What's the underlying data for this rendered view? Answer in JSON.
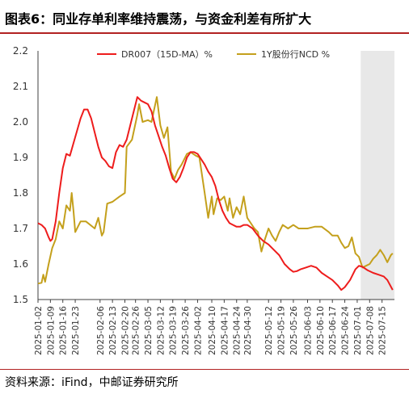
{
  "title": "图表6：同业存单利率维持震荡，与资金利差有所扩大",
  "source": "资料来源：iFind，中邮证券研究所",
  "colors": {
    "dr007": "#ee1c1c",
    "ncd": "#c4a01c",
    "shade": "#e8e8e8",
    "rule": "#b22222",
    "axis": "#404040"
  },
  "chart_data": {
    "type": "line",
    "ylim": [
      1.5,
      2.2
    ],
    "yticks": [
      "1.5",
      "1.6",
      "1.7",
      "1.8",
      "1.9",
      "2.0",
      "2.1",
      "2.2"
    ],
    "xlim": [
      "2025-01-02",
      "2025-07-22"
    ],
    "xticks": [
      "2025-01-02",
      "2025-01-09",
      "2025-01-16",
      "2025-01-23",
      "2025-02-06",
      "2025-02-13",
      "2025-02-20",
      "2025-02-26",
      "2025-03-05",
      "2025-03-12",
      "2025-03-19",
      "2025-03-26",
      "2025-04-02",
      "2025-04-10",
      "2025-04-17",
      "2025-04-24",
      "2025-04-30",
      "2025-05-12",
      "2025-05-19",
      "2025-05-26",
      "2025-06-03",
      "2025-06-10",
      "2025-06-17",
      "2025-06-24",
      "2025-07-01",
      "2025-07-08",
      "2025-07-15"
    ],
    "shaded_region": [
      "2025-07-03",
      "2025-07-22"
    ],
    "legend_position": "top",
    "series": [
      {
        "name": "DR007（15D-MA）%",
        "points": [
          [
            "2025-01-02",
            1.715
          ],
          [
            "2025-01-04",
            1.71
          ],
          [
            "2025-01-06",
            1.7
          ],
          [
            "2025-01-08",
            1.675
          ],
          [
            "2025-01-09",
            1.665
          ],
          [
            "2025-01-10",
            1.67
          ],
          [
            "2025-01-12",
            1.72
          ],
          [
            "2025-01-14",
            1.8
          ],
          [
            "2025-01-16",
            1.87
          ],
          [
            "2025-01-18",
            1.91
          ],
          [
            "2025-01-20",
            1.905
          ],
          [
            "2025-01-22",
            1.94
          ],
          [
            "2025-01-24",
            1.975
          ],
          [
            "2025-01-26",
            2.01
          ],
          [
            "2025-01-28",
            2.035
          ],
          [
            "2025-01-30",
            2.035
          ],
          [
            "2025-02-01",
            2.01
          ],
          [
            "2025-02-03",
            1.97
          ],
          [
            "2025-02-05",
            1.93
          ],
          [
            "2025-02-07",
            1.9
          ],
          [
            "2025-02-09",
            1.89
          ],
          [
            "2025-02-11",
            1.875
          ],
          [
            "2025-02-13",
            1.87
          ],
          [
            "2025-02-15",
            1.915
          ],
          [
            "2025-02-17",
            1.935
          ],
          [
            "2025-02-19",
            1.93
          ],
          [
            "2025-02-21",
            1.95
          ],
          [
            "2025-02-23",
            1.99
          ],
          [
            "2025-02-25",
            2.03
          ],
          [
            "2025-02-27",
            2.07
          ],
          [
            "2025-03-01",
            2.06
          ],
          [
            "2025-03-03",
            2.055
          ],
          [
            "2025-03-05",
            2.05
          ],
          [
            "2025-03-07",
            2.03
          ],
          [
            "2025-03-09",
            1.99
          ],
          [
            "2025-03-11",
            1.96
          ],
          [
            "2025-03-13",
            1.93
          ],
          [
            "2025-03-15",
            1.905
          ],
          [
            "2025-03-17",
            1.87
          ],
          [
            "2025-03-19",
            1.84
          ],
          [
            "2025-03-21",
            1.83
          ],
          [
            "2025-03-23",
            1.845
          ],
          [
            "2025-03-25",
            1.87
          ],
          [
            "2025-03-27",
            1.9
          ],
          [
            "2025-03-29",
            1.915
          ],
          [
            "2025-03-31",
            1.915
          ],
          [
            "2025-04-02",
            1.91
          ],
          [
            "2025-04-04",
            1.895
          ],
          [
            "2025-04-06",
            1.88
          ],
          [
            "2025-04-08",
            1.86
          ],
          [
            "2025-04-10",
            1.845
          ],
          [
            "2025-04-12",
            1.82
          ],
          [
            "2025-04-14",
            1.78
          ],
          [
            "2025-04-16",
            1.75
          ],
          [
            "2025-04-18",
            1.73
          ],
          [
            "2025-04-20",
            1.715
          ],
          [
            "2025-04-22",
            1.71
          ],
          [
            "2025-04-24",
            1.705
          ],
          [
            "2025-04-26",
            1.705
          ],
          [
            "2025-04-28",
            1.71
          ],
          [
            "2025-04-30",
            1.71
          ],
          [
            "2025-05-03",
            1.7
          ],
          [
            "2025-05-06",
            1.68
          ],
          [
            "2025-05-09",
            1.665
          ],
          [
            "2025-05-12",
            1.655
          ],
          [
            "2025-05-15",
            1.64
          ],
          [
            "2025-05-18",
            1.625
          ],
          [
            "2025-05-21",
            1.6
          ],
          [
            "2025-05-24",
            1.585
          ],
          [
            "2025-05-26",
            1.578
          ],
          [
            "2025-05-28",
            1.58
          ],
          [
            "2025-05-30",
            1.585
          ],
          [
            "2025-06-02",
            1.59
          ],
          [
            "2025-06-05",
            1.595
          ],
          [
            "2025-06-08",
            1.59
          ],
          [
            "2025-06-11",
            1.575
          ],
          [
            "2025-06-14",
            1.565
          ],
          [
            "2025-06-17",
            1.555
          ],
          [
            "2025-06-20",
            1.54
          ],
          [
            "2025-06-22",
            1.527
          ],
          [
            "2025-06-24",
            1.535
          ],
          [
            "2025-06-27",
            1.555
          ],
          [
            "2025-06-30",
            1.585
          ],
          [
            "2025-07-02",
            1.595
          ],
          [
            "2025-07-04",
            1.592
          ],
          [
            "2025-07-07",
            1.582
          ],
          [
            "2025-07-10",
            1.575
          ],
          [
            "2025-07-13",
            1.57
          ],
          [
            "2025-07-16",
            1.565
          ],
          [
            "2025-07-18",
            1.555
          ],
          [
            "2025-07-21",
            1.527
          ]
        ]
      },
      {
        "name": "1Y股份行NCD %",
        "points": [
          [
            "2025-01-02",
            1.545
          ],
          [
            "2025-01-04",
            1.547
          ],
          [
            "2025-01-05",
            1.57
          ],
          [
            "2025-01-06",
            1.55
          ],
          [
            "2025-01-08",
            1.6
          ],
          [
            "2025-01-10",
            1.645
          ],
          [
            "2025-01-12",
            1.67
          ],
          [
            "2025-01-14",
            1.72
          ],
          [
            "2025-01-16",
            1.7
          ],
          [
            "2025-01-18",
            1.765
          ],
          [
            "2025-01-20",
            1.75
          ],
          [
            "2025-01-21",
            1.8
          ],
          [
            "2025-01-22",
            1.75
          ],
          [
            "2025-01-23",
            1.69
          ],
          [
            "2025-01-26",
            1.72
          ],
          [
            "2025-01-29",
            1.72
          ],
          [
            "2025-02-03",
            1.7
          ],
          [
            "2025-02-05",
            1.73
          ],
          [
            "2025-02-07",
            1.68
          ],
          [
            "2025-02-08",
            1.69
          ],
          [
            "2025-02-10",
            1.77
          ],
          [
            "2025-02-13",
            1.775
          ],
          [
            "2025-02-17",
            1.79
          ],
          [
            "2025-02-20",
            1.8
          ],
          [
            "2025-02-21",
            1.93
          ],
          [
            "2025-02-24",
            1.95
          ],
          [
            "2025-02-27",
            2.02
          ],
          [
            "2025-02-28",
            2.05
          ],
          [
            "2025-03-02",
            2.0
          ],
          [
            "2025-03-05",
            2.005
          ],
          [
            "2025-03-07",
            2.0
          ],
          [
            "2025-03-10",
            2.07
          ],
          [
            "2025-03-12",
            1.99
          ],
          [
            "2025-03-14",
            1.955
          ],
          [
            "2025-03-16",
            1.985
          ],
          [
            "2025-03-18",
            1.86
          ],
          [
            "2025-03-20",
            1.84
          ],
          [
            "2025-03-22",
            1.865
          ],
          [
            "2025-03-24",
            1.88
          ],
          [
            "2025-03-27",
            1.91
          ],
          [
            "2025-03-29",
            1.915
          ],
          [
            "2025-04-01",
            1.905
          ],
          [
            "2025-04-03",
            1.9
          ],
          [
            "2025-04-06",
            1.8
          ],
          [
            "2025-04-08",
            1.73
          ],
          [
            "2025-04-10",
            1.79
          ],
          [
            "2025-04-11",
            1.74
          ],
          [
            "2025-04-13",
            1.785
          ],
          [
            "2025-04-15",
            1.78
          ],
          [
            "2025-04-17",
            1.79
          ],
          [
            "2025-04-19",
            1.75
          ],
          [
            "2025-04-20",
            1.785
          ],
          [
            "2025-04-22",
            1.73
          ],
          [
            "2025-04-24",
            1.76
          ],
          [
            "2025-04-26",
            1.74
          ],
          [
            "2025-04-28",
            1.79
          ],
          [
            "2025-04-30",
            1.73
          ],
          [
            "2025-05-04",
            1.7
          ],
          [
            "2025-05-06",
            1.69
          ],
          [
            "2025-05-08",
            1.635
          ],
          [
            "2025-05-10",
            1.67
          ],
          [
            "2025-05-12",
            1.7
          ],
          [
            "2025-05-14",
            1.68
          ],
          [
            "2025-05-16",
            1.665
          ],
          [
            "2025-05-18",
            1.69
          ],
          [
            "2025-05-20",
            1.71
          ],
          [
            "2025-05-23",
            1.7
          ],
          [
            "2025-05-26",
            1.71
          ],
          [
            "2025-05-29",
            1.7
          ],
          [
            "2025-06-03",
            1.7
          ],
          [
            "2025-06-07",
            1.705
          ],
          [
            "2025-06-11",
            1.705
          ],
          [
            "2025-06-15",
            1.69
          ],
          [
            "2025-06-17",
            1.68
          ],
          [
            "2025-06-20",
            1.68
          ],
          [
            "2025-06-22",
            1.66
          ],
          [
            "2025-06-24",
            1.645
          ],
          [
            "2025-06-26",
            1.65
          ],
          [
            "2025-06-28",
            1.675
          ],
          [
            "2025-06-30",
            1.63
          ],
          [
            "2025-07-02",
            1.62
          ],
          [
            "2025-07-04",
            1.59
          ],
          [
            "2025-07-06",
            1.595
          ],
          [
            "2025-07-08",
            1.6
          ],
          [
            "2025-07-10",
            1.615
          ],
          [
            "2025-07-12",
            1.625
          ],
          [
            "2025-07-14",
            1.64
          ],
          [
            "2025-07-16",
            1.625
          ],
          [
            "2025-07-18",
            1.605
          ],
          [
            "2025-07-20",
            1.625
          ],
          [
            "2025-07-21",
            1.63
          ]
        ]
      }
    ]
  }
}
